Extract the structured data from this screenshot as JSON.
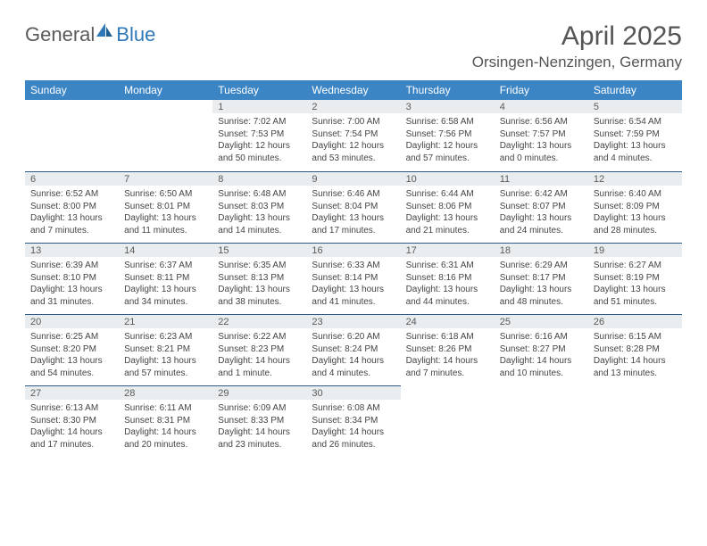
{
  "logo": {
    "part1": "General",
    "part2": "Blue"
  },
  "title": "April 2025",
  "subtitle": "Orsingen-Nenzingen, Germany",
  "colors": {
    "header_bg": "#3c85c5",
    "header_text": "#ffffff",
    "daynum_bg": "#e9edf0",
    "border": "#2a5b84",
    "text": "#444444",
    "logo_blue": "#2f78b7",
    "logo_gray": "#5a5a5a"
  },
  "days_of_week": [
    "Sunday",
    "Monday",
    "Tuesday",
    "Wednesday",
    "Thursday",
    "Friday",
    "Saturday"
  ],
  "weeks": [
    [
      null,
      null,
      {
        "n": "1",
        "sr": "Sunrise: 7:02 AM",
        "ss": "Sunset: 7:53 PM",
        "dl": "Daylight: 12 hours and 50 minutes."
      },
      {
        "n": "2",
        "sr": "Sunrise: 7:00 AM",
        "ss": "Sunset: 7:54 PM",
        "dl": "Daylight: 12 hours and 53 minutes."
      },
      {
        "n": "3",
        "sr": "Sunrise: 6:58 AM",
        "ss": "Sunset: 7:56 PM",
        "dl": "Daylight: 12 hours and 57 minutes."
      },
      {
        "n": "4",
        "sr": "Sunrise: 6:56 AM",
        "ss": "Sunset: 7:57 PM",
        "dl": "Daylight: 13 hours and 0 minutes."
      },
      {
        "n": "5",
        "sr": "Sunrise: 6:54 AM",
        "ss": "Sunset: 7:59 PM",
        "dl": "Daylight: 13 hours and 4 minutes."
      }
    ],
    [
      {
        "n": "6",
        "sr": "Sunrise: 6:52 AM",
        "ss": "Sunset: 8:00 PM",
        "dl": "Daylight: 13 hours and 7 minutes."
      },
      {
        "n": "7",
        "sr": "Sunrise: 6:50 AM",
        "ss": "Sunset: 8:01 PM",
        "dl": "Daylight: 13 hours and 11 minutes."
      },
      {
        "n": "8",
        "sr": "Sunrise: 6:48 AM",
        "ss": "Sunset: 8:03 PM",
        "dl": "Daylight: 13 hours and 14 minutes."
      },
      {
        "n": "9",
        "sr": "Sunrise: 6:46 AM",
        "ss": "Sunset: 8:04 PM",
        "dl": "Daylight: 13 hours and 17 minutes."
      },
      {
        "n": "10",
        "sr": "Sunrise: 6:44 AM",
        "ss": "Sunset: 8:06 PM",
        "dl": "Daylight: 13 hours and 21 minutes."
      },
      {
        "n": "11",
        "sr": "Sunrise: 6:42 AM",
        "ss": "Sunset: 8:07 PM",
        "dl": "Daylight: 13 hours and 24 minutes."
      },
      {
        "n": "12",
        "sr": "Sunrise: 6:40 AM",
        "ss": "Sunset: 8:09 PM",
        "dl": "Daylight: 13 hours and 28 minutes."
      }
    ],
    [
      {
        "n": "13",
        "sr": "Sunrise: 6:39 AM",
        "ss": "Sunset: 8:10 PM",
        "dl": "Daylight: 13 hours and 31 minutes."
      },
      {
        "n": "14",
        "sr": "Sunrise: 6:37 AM",
        "ss": "Sunset: 8:11 PM",
        "dl": "Daylight: 13 hours and 34 minutes."
      },
      {
        "n": "15",
        "sr": "Sunrise: 6:35 AM",
        "ss": "Sunset: 8:13 PM",
        "dl": "Daylight: 13 hours and 38 minutes."
      },
      {
        "n": "16",
        "sr": "Sunrise: 6:33 AM",
        "ss": "Sunset: 8:14 PM",
        "dl": "Daylight: 13 hours and 41 minutes."
      },
      {
        "n": "17",
        "sr": "Sunrise: 6:31 AM",
        "ss": "Sunset: 8:16 PM",
        "dl": "Daylight: 13 hours and 44 minutes."
      },
      {
        "n": "18",
        "sr": "Sunrise: 6:29 AM",
        "ss": "Sunset: 8:17 PM",
        "dl": "Daylight: 13 hours and 48 minutes."
      },
      {
        "n": "19",
        "sr": "Sunrise: 6:27 AM",
        "ss": "Sunset: 8:19 PM",
        "dl": "Daylight: 13 hours and 51 minutes."
      }
    ],
    [
      {
        "n": "20",
        "sr": "Sunrise: 6:25 AM",
        "ss": "Sunset: 8:20 PM",
        "dl": "Daylight: 13 hours and 54 minutes."
      },
      {
        "n": "21",
        "sr": "Sunrise: 6:23 AM",
        "ss": "Sunset: 8:21 PM",
        "dl": "Daylight: 13 hours and 57 minutes."
      },
      {
        "n": "22",
        "sr": "Sunrise: 6:22 AM",
        "ss": "Sunset: 8:23 PM",
        "dl": "Daylight: 14 hours and 1 minute."
      },
      {
        "n": "23",
        "sr": "Sunrise: 6:20 AM",
        "ss": "Sunset: 8:24 PM",
        "dl": "Daylight: 14 hours and 4 minutes."
      },
      {
        "n": "24",
        "sr": "Sunrise: 6:18 AM",
        "ss": "Sunset: 8:26 PM",
        "dl": "Daylight: 14 hours and 7 minutes."
      },
      {
        "n": "25",
        "sr": "Sunrise: 6:16 AM",
        "ss": "Sunset: 8:27 PM",
        "dl": "Daylight: 14 hours and 10 minutes."
      },
      {
        "n": "26",
        "sr": "Sunrise: 6:15 AM",
        "ss": "Sunset: 8:28 PM",
        "dl": "Daylight: 14 hours and 13 minutes."
      }
    ],
    [
      {
        "n": "27",
        "sr": "Sunrise: 6:13 AM",
        "ss": "Sunset: 8:30 PM",
        "dl": "Daylight: 14 hours and 17 minutes."
      },
      {
        "n": "28",
        "sr": "Sunrise: 6:11 AM",
        "ss": "Sunset: 8:31 PM",
        "dl": "Daylight: 14 hours and 20 minutes."
      },
      {
        "n": "29",
        "sr": "Sunrise: 6:09 AM",
        "ss": "Sunset: 8:33 PM",
        "dl": "Daylight: 14 hours and 23 minutes."
      },
      {
        "n": "30",
        "sr": "Sunrise: 6:08 AM",
        "ss": "Sunset: 8:34 PM",
        "dl": "Daylight: 14 hours and 26 minutes."
      },
      null,
      null,
      null
    ]
  ]
}
